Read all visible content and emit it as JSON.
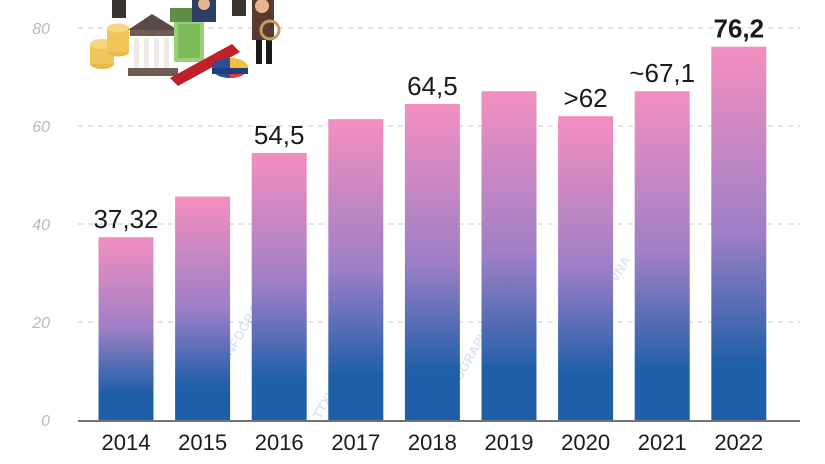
{
  "chart_data": {
    "type": "bar",
    "categories": [
      "2014",
      "2015",
      "2016",
      "2017",
      "2018",
      "2019",
      "2020",
      "2021",
      "2022"
    ],
    "values": [
      37.32,
      45.6,
      54.5,
      61.4,
      64.5,
      67.1,
      62,
      67.1,
      76.2
    ],
    "data_labels": [
      "37,32",
      "",
      "54,5",
      "",
      "64,5",
      "",
      ">62",
      "~67,1",
      "76,2"
    ],
    "highlight_index": 8,
    "yticks": [
      "0",
      "20",
      "40",
      "60",
      "80"
    ],
    "ylim": [
      0,
      80
    ],
    "grid": true,
    "colors": {
      "bar_top": "#f48fc0",
      "bar_mid": "#9d7fc6",
      "bar_bottom": "#1f5fa8",
      "grid": "#c8c8c8",
      "axis": "#444444"
    },
    "watermarks": [
      "INFOGRAPHICS",
      "TTXVN - VNA"
    ]
  },
  "illustration": {
    "icon": "finance-banking-illustration-icon"
  }
}
